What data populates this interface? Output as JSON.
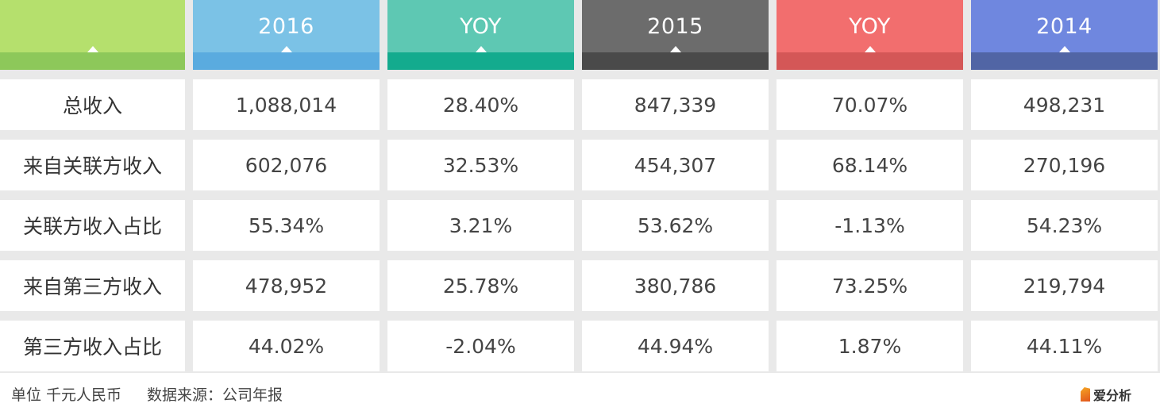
{
  "colors": {
    "label": {
      "top": "#b5e06d",
      "strip": "#8dc85a"
    },
    "c2016": {
      "top": "#7bc2e6",
      "strip": "#5aabdf"
    },
    "c_yoy1": {
      "top": "#5ec8b3",
      "strip": "#13ab8e"
    },
    "c2015": {
      "top": "#6c6c6c",
      "strip": "#4a4a4a"
    },
    "c_yoy2": {
      "top": "#f26e6e",
      "strip": "#d45757"
    },
    "c2014": {
      "top": "#6f87df",
      "strip": "#5165a5"
    }
  },
  "chart_data": {
    "type": "table",
    "columns": [
      "",
      "2016",
      "YOY",
      "2015",
      "YOY",
      "2014"
    ],
    "rows": [
      {
        "label": "总收入",
        "values": [
          "1,088,014",
          "28.40%",
          "847,339",
          "70.07%",
          "498,231"
        ]
      },
      {
        "label": "来自关联方收入",
        "values": [
          "602,076",
          "32.53%",
          "454,307",
          "68.14%",
          "270,196"
        ]
      },
      {
        "label": "关联方收入占比",
        "values": [
          "55.34%",
          "3.21%",
          "53.62%",
          "-1.13%",
          "54.23%"
        ]
      },
      {
        "label": "来自第三方收入",
        "values": [
          "478,952",
          "25.78%",
          "380,786",
          "73.25%",
          "219,794"
        ]
      },
      {
        "label": "第三方收入占比",
        "values": [
          "44.02%",
          "-2.04%",
          "44.94%",
          "1.87%",
          "44.11%"
        ]
      }
    ]
  },
  "footer": {
    "unit": "单位 千元人民币",
    "source": "数据来源：公司年报",
    "logo_text": "爱分析"
  }
}
